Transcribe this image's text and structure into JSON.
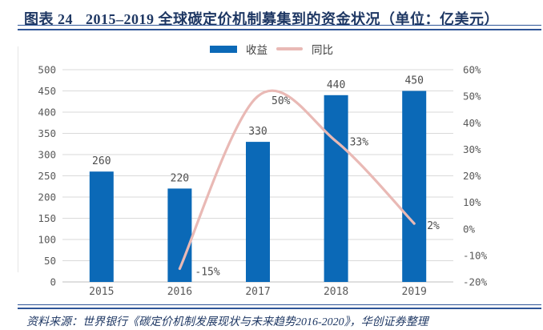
{
  "figure": {
    "label": "图表 24",
    "title": "2015–2019 全球碳定价机制募集到的资金状况（单位：亿美元）",
    "source": "资料来源：世界银行《碳定价机制发展现状与未来趋势2016-2020》，华创证券整理"
  },
  "colors": {
    "bar": "#0B69B7",
    "line": "#E9B9B5",
    "navy": "#1F3864",
    "rule": "#2F5597",
    "grid": "#DADADA",
    "axis": "#BFBFBF",
    "tick_text": "#595959"
  },
  "chart_data": {
    "type": "bar",
    "subtype": "combo-bar-line",
    "title": "2015–2019 全球碳定价机制募集到的资金状况",
    "unit": "亿美元",
    "categories": [
      "2015",
      "2016",
      "2017",
      "2018",
      "2019"
    ],
    "series": [
      {
        "name": "收益",
        "type": "bar",
        "axis": "left",
        "values": [
          260,
          220,
          330,
          440,
          450
        ],
        "data_labels": [
          "260",
          "220",
          "330",
          "440",
          "450"
        ]
      },
      {
        "name": "同比",
        "type": "line",
        "axis": "right",
        "values": [
          null,
          -15,
          50,
          33,
          2
        ],
        "data_labels": [
          null,
          "-15%",
          "50%",
          "33%",
          "2%"
        ]
      }
    ],
    "left_axis": {
      "min": 0,
      "max": 500,
      "step": 50,
      "ticks": [
        "0",
        "50",
        "100",
        "150",
        "200",
        "250",
        "300",
        "350",
        "400",
        "450",
        "500"
      ]
    },
    "right_axis": {
      "min": -20,
      "max": 60,
      "step": 10,
      "ticks": [
        "-20%",
        "-10%",
        "0%",
        "10%",
        "20%",
        "30%",
        "40%",
        "50%",
        "60%"
      ]
    },
    "legend_position": "top",
    "grid": true
  }
}
